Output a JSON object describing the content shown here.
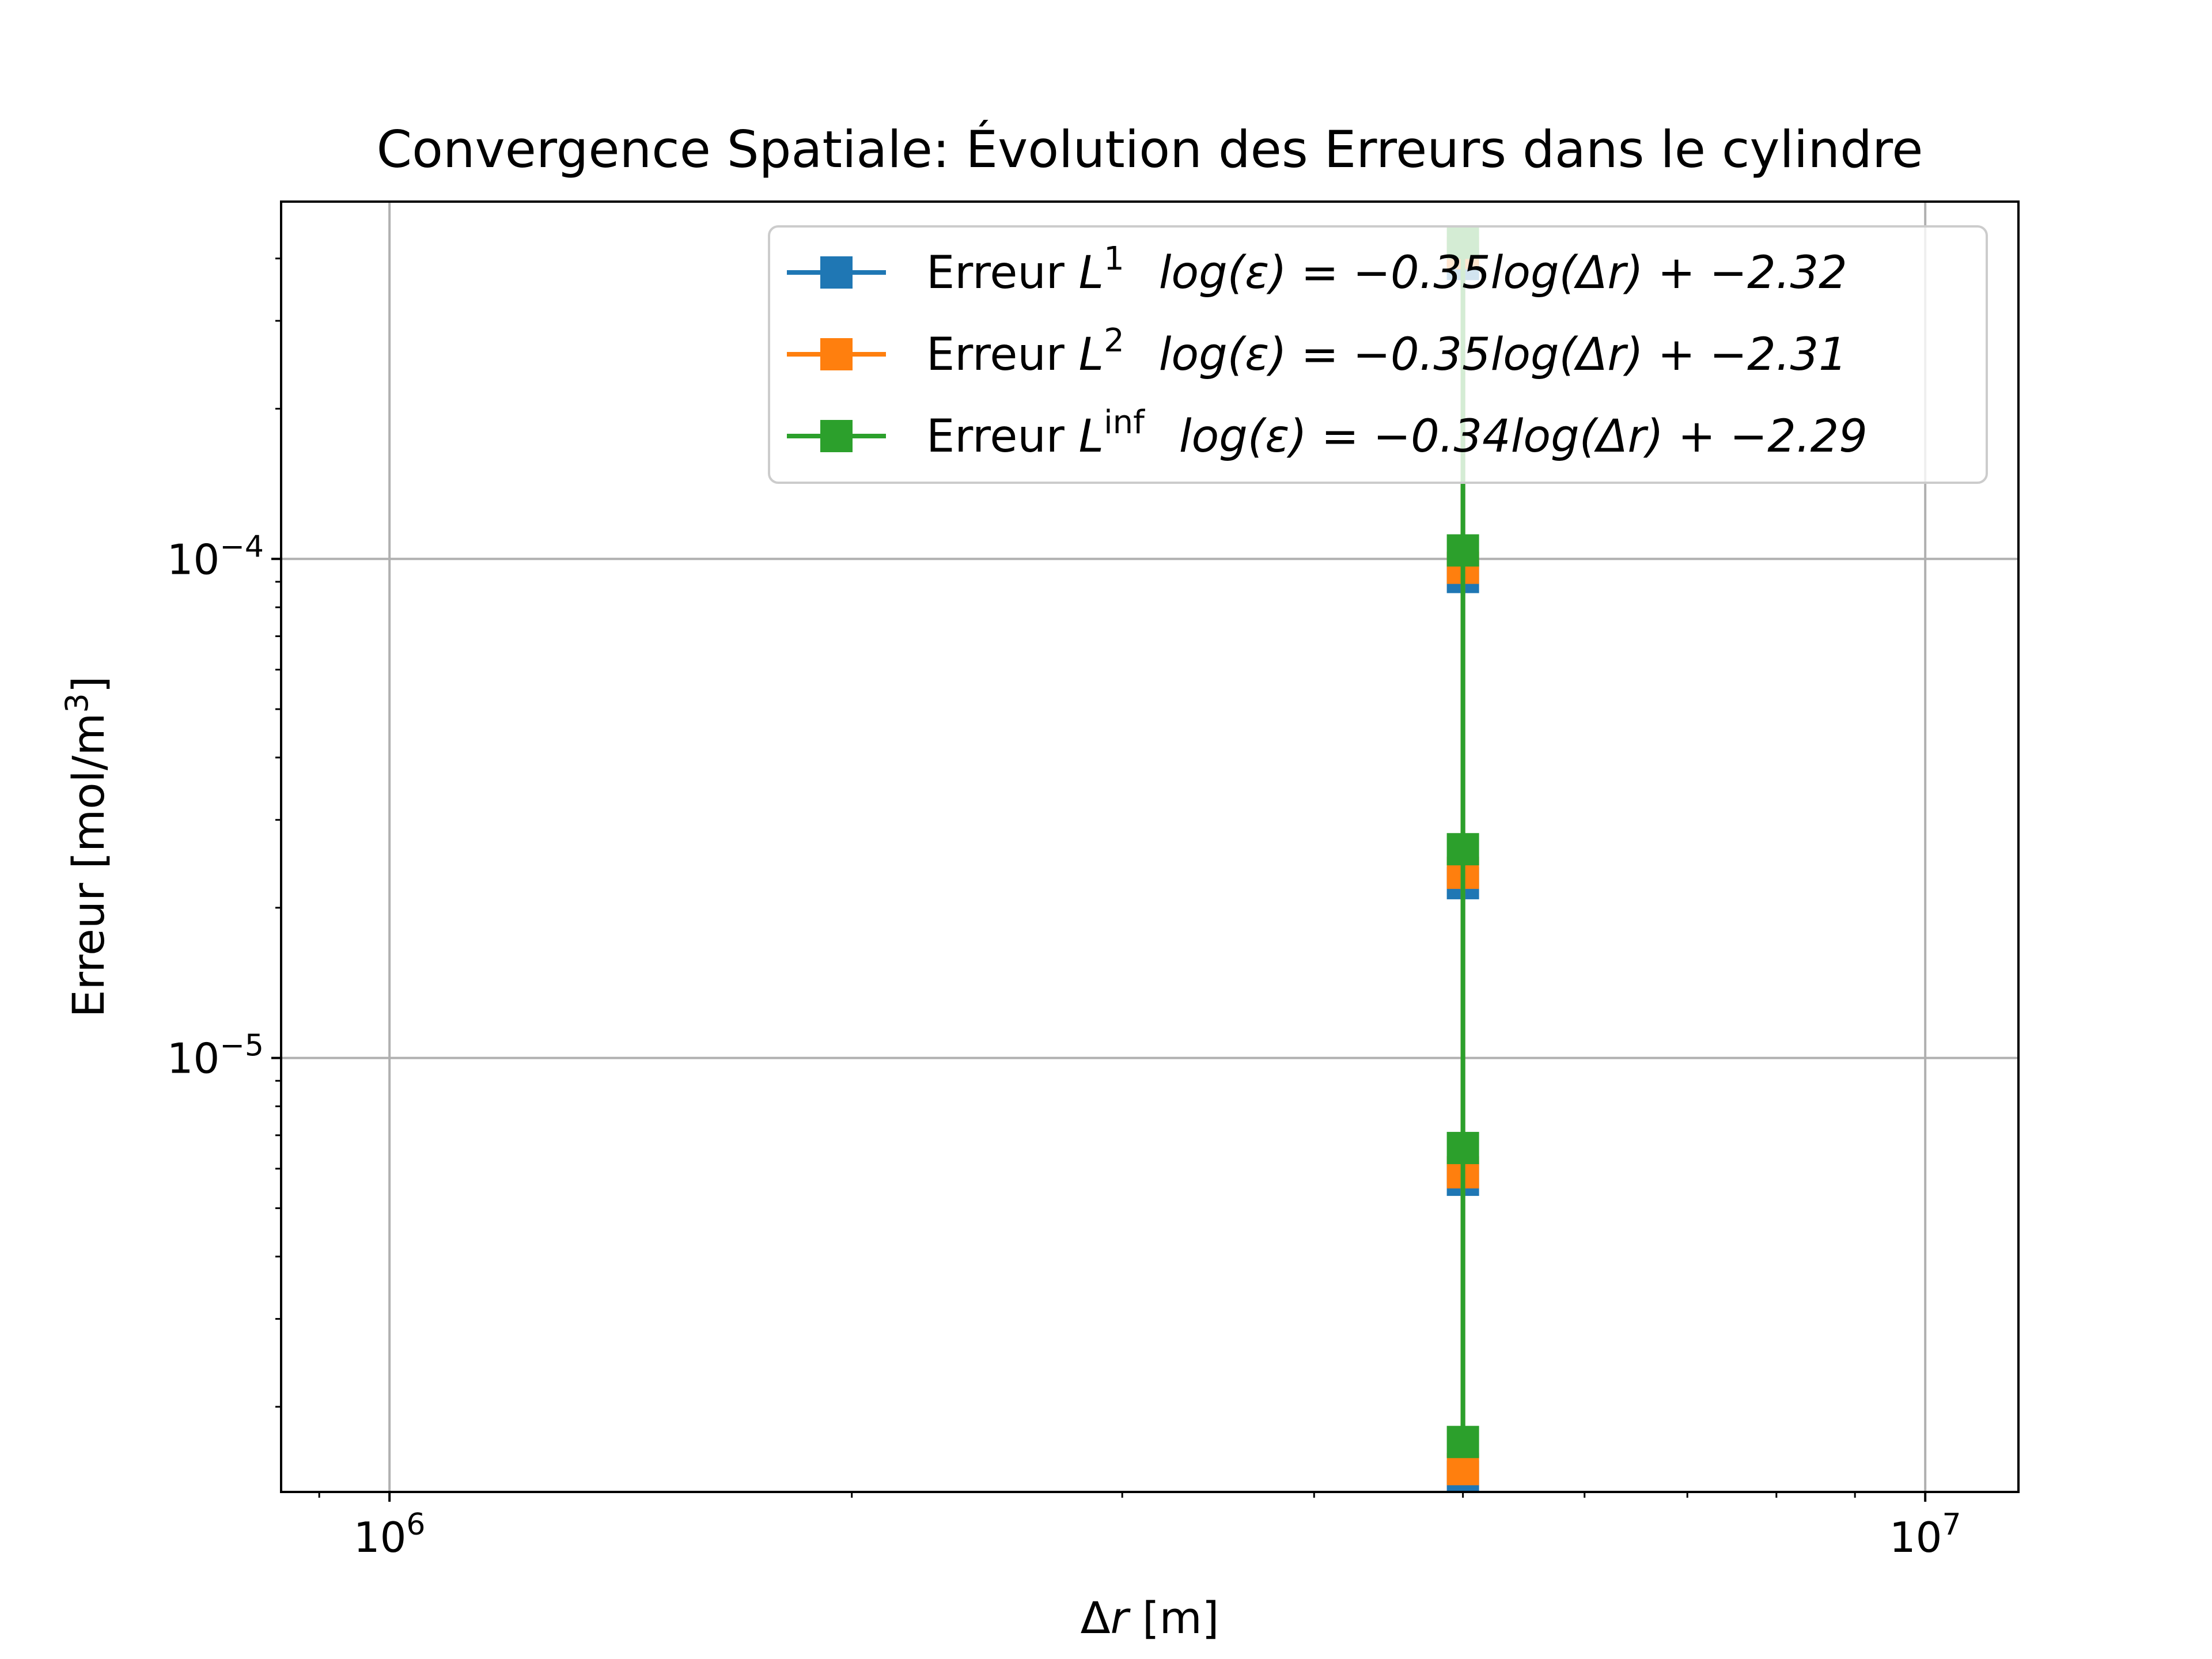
{
  "chart_data": {
    "type": "line",
    "title": "Convergence Spatiale: Évolution des Erreurs dans le cylindre",
    "xlabel": {
      "symbol": "Δ",
      "var": "r",
      "unit": " [m]"
    },
    "ylabel": {
      "main": "Erreur [mol/m",
      "sup": "3",
      "close": "]"
    },
    "xscale": "log",
    "yscale": "log",
    "xlim": [
      850000,
      11500000
    ],
    "ylim": [
      1.35e-06,
      0.00052
    ],
    "grid": true,
    "legend_position": "top-right",
    "x_ticks": [
      {
        "value": 1000000,
        "base": "10",
        "exp": "6"
      },
      {
        "value": 10000000,
        "base": "10",
        "exp": "7"
      }
    ],
    "y_ticks": [
      {
        "value": 0.0001,
        "base": "10",
        "exp": "−4"
      },
      {
        "value": 1e-05,
        "base": "10",
        "exp": "−5"
      }
    ],
    "x_minor_ticks": [
      900000,
      2000000,
      3000000,
      4000000,
      5000000,
      6000000,
      7000000,
      8000000,
      9000000
    ],
    "y_minor_ticks": [
      2e-06,
      3e-06,
      4e-06,
      5e-06,
      6e-06,
      7e-06,
      8e-06,
      9e-06,
      2e-05,
      3e-05,
      4e-05,
      5e-05,
      6e-05,
      7e-05,
      8e-05,
      9e-05,
      0.0002,
      0.0003,
      0.0004
    ],
    "series": [
      {
        "name": "Erreur L1",
        "legend_label": {
          "prefix": "Erreur ",
          "var": "L",
          "sup": "1",
          "equation": "log(ε) = −0.35log(Δr) + −2.32"
        },
        "color": "#1f77b4",
        "x": [
          5000000,
          5000000,
          5000000,
          5000000,
          5000000
        ],
        "y": [
          0.00039,
          9.2e-05,
          2.24e-05,
          5.7e-06,
          1.45e-06
        ]
      },
      {
        "name": "Erreur L2",
        "legend_label": {
          "prefix": "Erreur ",
          "var": "L",
          "sup": "2",
          "equation": "log(ε) = −0.35log(Δr) + −2.31"
        },
        "color": "#ff7f0e",
        "x": [
          5000000,
          5000000,
          5000000,
          5000000,
          5000000
        ],
        "y": [
          0.00041,
          9.6e-05,
          2.35e-05,
          5.9e-06,
          1.5e-06
        ]
      },
      {
        "name": "Erreur Linf",
        "legend_label": {
          "prefix": "Erreur ",
          "var": "L",
          "sup": "inf",
          "equation": "log(ε) = −0.34log(Δr) + −2.29"
        },
        "color": "#2ca02c",
        "x": [
          5000000,
          5000000,
          5000000,
          5000000,
          5000000
        ],
        "y": [
          0.00043,
          0.000104,
          2.62e-05,
          6.6e-06,
          1.7e-06
        ]
      }
    ]
  }
}
